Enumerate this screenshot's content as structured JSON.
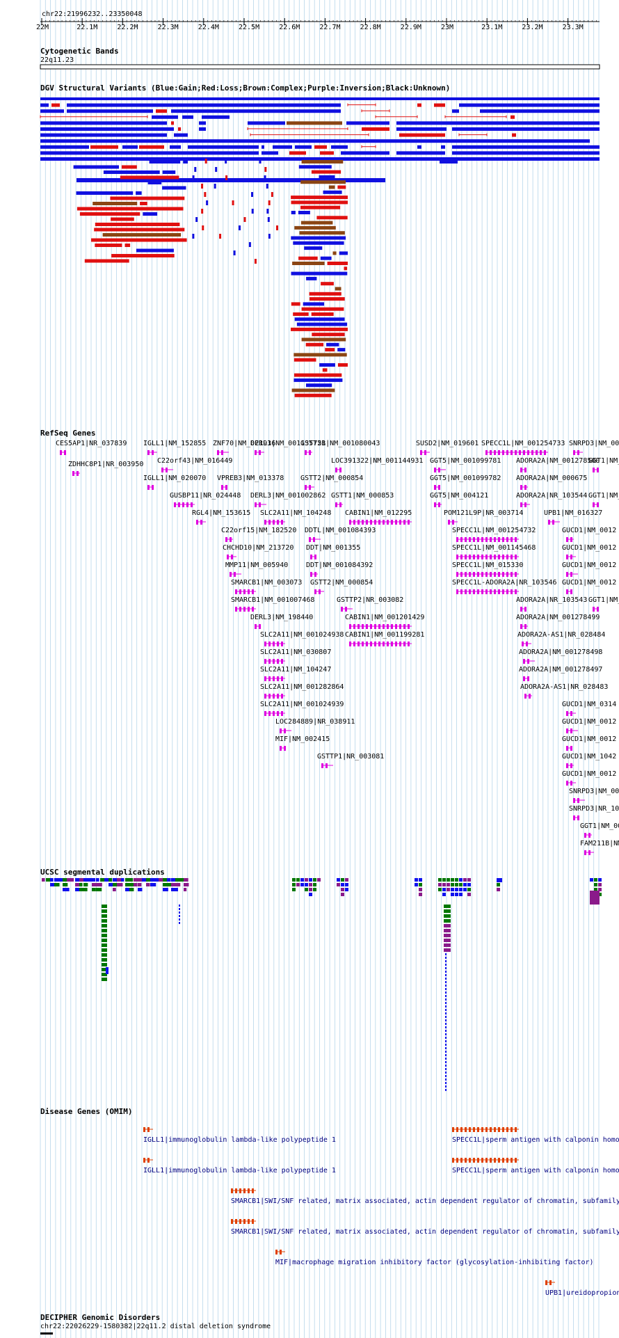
{
  "coordinate": "chr22:21996232..23350048",
  "ruler_ticks": [
    "22M",
    "22.1M",
    "22.2M",
    "22.3M",
    "22.4M",
    "22.5M",
    "22.6M",
    "22.7M",
    "22.8M",
    "22.9M",
    "23M",
    "23.1M",
    "23.2M",
    "23.3M"
  ],
  "colors": {
    "gain": "#1010e0",
    "loss": "#e01010",
    "complex": "#8b4513",
    "inversion": "#800080",
    "unknown": "#000000",
    "gene": "#e000e0",
    "omim_text": "#000080",
    "omim_glyph": "#e04000",
    "segdup_green": "#007700",
    "segdup_purple": "#8a1a8a",
    "segdup_blue": "#1010ee",
    "grid": "#9ec9e4"
  },
  "tracks": {
    "cytoband": {
      "title": "Cytogenetic Bands",
      "band": "22q11.23"
    },
    "dgv": {
      "title": "DGV Structural Variants (Blue:Gain;Red:Loss;Brown:Complex;Purple:Inversion;Black:Unknown)"
    },
    "refseq": {
      "title": "RefSeq Genes",
      "genes": [
        "CES5AP1|NR_037839",
        "ZDHHC8P1|NR_003950",
        "IGLL1|NM_152855",
        "C22orf43|NM_016449",
        "IGLL1|NM_020070",
        "GUSBP11|NR_024448",
        "RGL4|NM_153615",
        "ZNF70|NM_021916",
        "VPREB3|NM_013378",
        "C22orf15|NM_182520",
        "CHCHD10|NM_213720",
        "MMP11|NM_005940",
        "SMARCB1|NM_003073",
        "SMARCB1|NM_001007468",
        "DERL3|NM_001135751",
        "DERL3|NM_001002862",
        "DERL3|NM_198440",
        "SLC2A11|NM_104248",
        "SLC2A11|NM_001024938",
        "SLC2A11|NM_030807",
        "SLC2A11|NM_104247",
        "SLC2A11|NM_001282864",
        "SLC2A11|NM_001024939",
        "LOC284889|NR_038911",
        "MIF|NM_002415",
        "GSTT2B|NM_001080043",
        "GSTT2|NM_000854",
        "DDTL|NM_001084393",
        "DDT|NM_001355",
        "DDT|NM_001084392",
        "GSTT2|NM_000854",
        "GSTTP1|NR_003081",
        "LOC391322|NM_001144931",
        "GSTT1|NM_000853",
        "CABIN1|NM_012295",
        "GSTTP2|NR_003082",
        "CABIN1|NM_001201429",
        "CABIN1|NM_001199281",
        "SUSD2|NM_019601",
        "GGT5|NM_001099781",
        "GGT5|NM_001099782",
        "GGT5|NM_004121",
        "POM121L9P|NR_003714",
        "SPECC1L|NM_001254733",
        "SPECC1L|NM_001254732",
        "SPECC1L|NM_001145468",
        "SPECC1L|NM_015330",
        "SPECC1L-ADORA2A|NR_103546",
        "ADORA2A|NM_001278500",
        "ADORA2A|NM_000675",
        "ADORA2A|NR_103544",
        "UPB1|NM_016327",
        "ADORA2A|NR_103543",
        "ADORA2A|NM_001278499",
        "ADORA2A-AS1|NR_028484",
        "ADORA2A|NM_001278498",
        "ADORA2A|NM_001278497",
        "ADORA2A-AS1|NR_028483",
        "SNRPD3|NM_00",
        "GGT1|NM_",
        "GGT1|NM_",
        "GUCD1|NM_0012",
        "GUCD1|NM_0012",
        "GUCD1|NM_0012",
        "GUCD1|NM_0012",
        "GGT1|NM_",
        "GUCD1|NM_0314",
        "GUCD1|NM_0012",
        "GUCD1|NM_0012",
        "GUCD1|NM_1042",
        "GUCD1|NM_0012",
        "SNRPD3|NM_00",
        "SNRPD3|NR_10",
        "GGT1|NM_00",
        "FAM211B|NM_"
      ]
    },
    "segdup": {
      "title": "UCSC segmental duplications"
    },
    "omim": {
      "title": "Disease Genes (OMIM)",
      "entries": [
        "IGLL1|immunoglobulin lambda-like polypeptide 1",
        "IGLL1|immunoglobulin lambda-like polypeptide 1",
        "SPECC1L|sperm antigen with calponin homo",
        "SPECC1L|sperm antigen with calponin homo",
        "SMARCB1|SWI/SNF related, matrix associated, actin dependent regulator of chromatin, subfamily",
        "SMARCB1|SWI/SNF related, matrix associated, actin dependent regulator of chromatin, subfamily",
        "MIF|macrophage migration inhibitory factor (glycosylation-inhibiting factor)",
        "UPB1|ureidopropion"
      ]
    },
    "decipher": {
      "title": "DECIPHER Genomic Disorders",
      "entry": "chr22:22026229-1580382|22q11.2 distal deletion syndrome"
    }
  }
}
